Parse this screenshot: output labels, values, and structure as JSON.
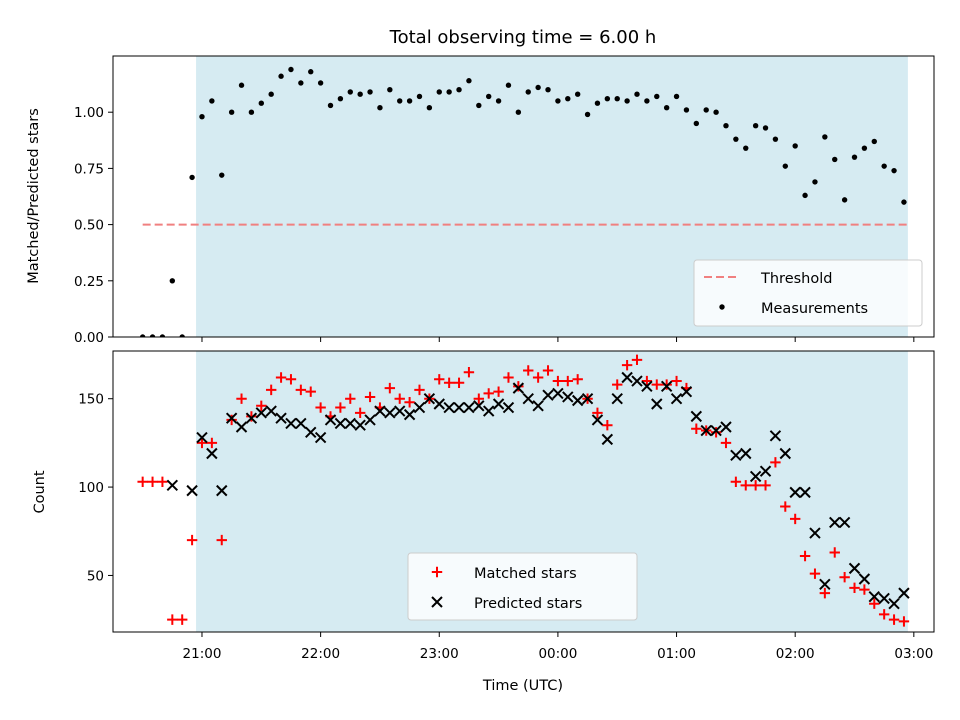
{
  "chart_data": [
    {
      "type": "scatter",
      "title": "Total observing time = 6.00 h",
      "ylabel": "Matched/Predicted stars",
      "xlabel": "",
      "ylim": [
        0,
        1.25
      ],
      "xlim": [
        20.25,
        27.17
      ],
      "x_axis": "time",
      "yticks": [
        "0.00",
        "0.25",
        "0.50",
        "0.75",
        "1.00"
      ],
      "shaded_interval": {
        "start": "20:57",
        "end": "02:57",
        "color": "#add8e6"
      },
      "threshold": {
        "name": "Threshold",
        "value": 0.5,
        "start": "20:30",
        "end": "02:57",
        "color": "#f08080",
        "style": "dashed"
      },
      "legend": {
        "position": "lower right",
        "entries": [
          "Threshold",
          "Measurements"
        ]
      },
      "series": [
        {
          "name": "Measurements",
          "color": "#000000",
          "marker": "dot",
          "points": [
            [
              "20:30",
              0.0
            ],
            [
              "20:35",
              0.0
            ],
            [
              "20:40",
              0.0
            ],
            [
              "20:45",
              0.25
            ],
            [
              "20:50",
              0.0
            ],
            [
              "20:55",
              0.71
            ],
            [
              "21:00",
              0.98
            ],
            [
              "21:05",
              1.05
            ],
            [
              "21:10",
              0.72
            ],
            [
              "21:15",
              1.0
            ],
            [
              "21:20",
              1.12
            ],
            [
              "21:25",
              1.0
            ],
            [
              "21:30",
              1.04
            ],
            [
              "21:35",
              1.08
            ],
            [
              "21:40",
              1.16
            ],
            [
              "21:45",
              1.19
            ],
            [
              "21:50",
              1.13
            ],
            [
              "21:55",
              1.18
            ],
            [
              "22:00",
              1.13
            ],
            [
              "22:05",
              1.03
            ],
            [
              "22:10",
              1.06
            ],
            [
              "22:15",
              1.09
            ],
            [
              "22:20",
              1.08
            ],
            [
              "22:25",
              1.09
            ],
            [
              "22:30",
              1.02
            ],
            [
              "22:35",
              1.1
            ],
            [
              "22:40",
              1.05
            ],
            [
              "22:45",
              1.05
            ],
            [
              "22:50",
              1.07
            ],
            [
              "22:55",
              1.02
            ],
            [
              "23:00",
              1.09
            ],
            [
              "23:05",
              1.09
            ],
            [
              "23:10",
              1.1
            ],
            [
              "23:15",
              1.14
            ],
            [
              "23:20",
              1.03
            ],
            [
              "23:25",
              1.07
            ],
            [
              "23:30",
              1.05
            ],
            [
              "23:35",
              1.12
            ],
            [
              "23:40",
              1.0
            ],
            [
              "23:45",
              1.09
            ],
            [
              "23:50",
              1.11
            ],
            [
              "23:55",
              1.1
            ],
            [
              "00:00",
              1.05
            ],
            [
              "00:05",
              1.06
            ],
            [
              "00:10",
              1.08
            ],
            [
              "00:15",
              0.99
            ],
            [
              "00:20",
              1.04
            ],
            [
              "00:25",
              1.06
            ],
            [
              "00:30",
              1.06
            ],
            [
              "00:35",
              1.05
            ],
            [
              "00:40",
              1.08
            ],
            [
              "00:45",
              1.05
            ],
            [
              "00:50",
              1.07
            ],
            [
              "00:55",
              1.02
            ],
            [
              "01:00",
              1.07
            ],
            [
              "01:05",
              1.01
            ],
            [
              "01:10",
              0.95
            ],
            [
              "01:15",
              1.01
            ],
            [
              "01:20",
              1.0
            ],
            [
              "01:25",
              0.94
            ],
            [
              "01:30",
              0.88
            ],
            [
              "01:35",
              0.84
            ],
            [
              "01:40",
              0.94
            ],
            [
              "01:45",
              0.93
            ],
            [
              "01:50",
              0.88
            ],
            [
              "01:55",
              0.76
            ],
            [
              "02:00",
              0.85
            ],
            [
              "02:05",
              0.63
            ],
            [
              "02:10",
              0.69
            ],
            [
              "02:15",
              0.89
            ],
            [
              "02:20",
              0.79
            ],
            [
              "02:25",
              0.61
            ],
            [
              "02:30",
              0.8
            ],
            [
              "02:35",
              0.84
            ],
            [
              "02:40",
              0.87
            ],
            [
              "02:45",
              0.76
            ],
            [
              "02:50",
              0.74
            ],
            [
              "02:55",
              0.6
            ]
          ]
        }
      ]
    },
    {
      "type": "scatter",
      "title": "",
      "ylabel": "Count",
      "xlabel": "Time (UTC)",
      "ylim": [
        18,
        177
      ],
      "xlim": [
        20.25,
        27.17
      ],
      "x_axis": "time",
      "yticks": [
        "50",
        "100",
        "150"
      ],
      "xticks": [
        "21:00",
        "22:00",
        "23:00",
        "00:00",
        "01:00",
        "02:00",
        "03:00"
      ],
      "shaded_interval": {
        "start": "20:57",
        "end": "02:57",
        "color": "#add8e6"
      },
      "legend": {
        "position": "lower center",
        "entries": [
          "Matched stars",
          "Predicted stars"
        ]
      },
      "series": [
        {
          "name": "Matched stars",
          "color": "#ff0000",
          "marker": "plus",
          "points": [
            [
              "20:30",
              103
            ],
            [
              "20:35",
              103
            ],
            [
              "20:40",
              103
            ],
            [
              "20:45",
              25
            ],
            [
              "20:50",
              25
            ],
            [
              "20:55",
              70
            ],
            [
              "21:00",
              125
            ],
            [
              "21:05",
              125
            ],
            [
              "21:10",
              70
            ],
            [
              "21:15",
              138
            ],
            [
              "21:20",
              150
            ],
            [
              "21:25",
              140
            ],
            [
              "21:30",
              146
            ],
            [
              "21:35",
              155
            ],
            [
              "21:40",
              162
            ],
            [
              "21:45",
              161
            ],
            [
              "21:50",
              155
            ],
            [
              "21:55",
              154
            ],
            [
              "22:00",
              145
            ],
            [
              "22:05",
              140
            ],
            [
              "22:10",
              145
            ],
            [
              "22:15",
              150
            ],
            [
              "22:20",
              142
            ],
            [
              "22:25",
              151
            ],
            [
              "22:30",
              145
            ],
            [
              "22:35",
              156
            ],
            [
              "22:40",
              150
            ],
            [
              "22:45",
              148
            ],
            [
              "22:50",
              155
            ],
            [
              "22:55",
              150
            ],
            [
              "23:00",
              161
            ],
            [
              "23:05",
              159
            ],
            [
              "23:10",
              159
            ],
            [
              "23:15",
              165
            ],
            [
              "23:20",
              150
            ],
            [
              "23:25",
              153
            ],
            [
              "23:30",
              154
            ],
            [
              "23:35",
              162
            ],
            [
              "23:40",
              157
            ],
            [
              "23:45",
              166
            ],
            [
              "23:50",
              162
            ],
            [
              "23:55",
              166
            ],
            [
              "00:00",
              160
            ],
            [
              "00:05",
              160
            ],
            [
              "00:10",
              161
            ],
            [
              "00:15",
              150
            ],
            [
              "00:20",
              142
            ],
            [
              "00:25",
              135
            ],
            [
              "00:30",
              158
            ],
            [
              "00:35",
              169
            ],
            [
              "00:40",
              172
            ],
            [
              "00:45",
              160
            ],
            [
              "00:50",
              158
            ],
            [
              "00:55",
              158
            ],
            [
              "01:00",
              160
            ],
            [
              "01:05",
              156
            ],
            [
              "01:10",
              133
            ],
            [
              "01:15",
              132
            ],
            [
              "01:20",
              131
            ],
            [
              "01:25",
              125
            ],
            [
              "01:30",
              103
            ],
            [
              "01:35",
              101
            ],
            [
              "01:40",
              101
            ],
            [
              "01:45",
              101
            ],
            [
              "01:50",
              114
            ],
            [
              "01:55",
              89
            ],
            [
              "02:00",
              82
            ],
            [
              "02:05",
              61
            ],
            [
              "02:10",
              51
            ],
            [
              "02:15",
              40
            ],
            [
              "02:20",
              63
            ],
            [
              "02:25",
              49
            ],
            [
              "02:30",
              43
            ],
            [
              "02:35",
              42
            ],
            [
              "02:40",
              34
            ],
            [
              "02:45",
              28
            ],
            [
              "02:50",
              25
            ],
            [
              "02:55",
              24
            ]
          ]
        },
        {
          "name": "Predicted stars",
          "color": "#000000",
          "marker": "x",
          "points": [
            [
              "20:45",
              101
            ],
            [
              "20:55",
              98
            ],
            [
              "21:00",
              128
            ],
            [
              "21:05",
              119
            ],
            [
              "21:10",
              98
            ],
            [
              "21:15",
              139
            ],
            [
              "21:20",
              134
            ],
            [
              "21:25",
              139
            ],
            [
              "21:30",
              142
            ],
            [
              "21:35",
              143
            ],
            [
              "21:40",
              139
            ],
            [
              "21:45",
              136
            ],
            [
              "21:50",
              136
            ],
            [
              "21:55",
              131
            ],
            [
              "22:00",
              128
            ],
            [
              "22:05",
              138
            ],
            [
              "22:10",
              136
            ],
            [
              "22:15",
              136
            ],
            [
              "22:20",
              135
            ],
            [
              "22:25",
              138
            ],
            [
              "22:30",
              143
            ],
            [
              "22:35",
              142
            ],
            [
              "22:40",
              143
            ],
            [
              "22:45",
              141
            ],
            [
              "22:50",
              145
            ],
            [
              "22:55",
              150
            ],
            [
              "23:00",
              147
            ],
            [
              "23:05",
              145
            ],
            [
              "23:10",
              145
            ],
            [
              "23:15",
              145
            ],
            [
              "23:20",
              146
            ],
            [
              "23:25",
              143
            ],
            [
              "23:30",
              147
            ],
            [
              "23:35",
              145
            ],
            [
              "23:40",
              156
            ],
            [
              "23:45",
              150
            ],
            [
              "23:50",
              146
            ],
            [
              "23:55",
              152
            ],
            [
              "00:00",
              153
            ],
            [
              "00:05",
              151
            ],
            [
              "00:10",
              149
            ],
            [
              "00:15",
              150
            ],
            [
              "00:20",
              138
            ],
            [
              "00:25",
              127
            ],
            [
              "00:30",
              150
            ],
            [
              "00:35",
              162
            ],
            [
              "00:40",
              160
            ],
            [
              "00:45",
              157
            ],
            [
              "00:50",
              147
            ],
            [
              "00:55",
              157
            ],
            [
              "01:00",
              150
            ],
            [
              "01:05",
              154
            ],
            [
              "01:10",
              140
            ],
            [
              "01:15",
              132
            ],
            [
              "01:20",
              132
            ],
            [
              "01:25",
              134
            ],
            [
              "01:30",
              118
            ],
            [
              "01:35",
              119
            ],
            [
              "01:40",
              106
            ],
            [
              "01:45",
              109
            ],
            [
              "01:50",
              129
            ],
            [
              "01:55",
              119
            ],
            [
              "02:00",
              97
            ],
            [
              "02:05",
              97
            ],
            [
              "02:10",
              74
            ],
            [
              "02:15",
              45
            ],
            [
              "02:20",
              80
            ],
            [
              "02:25",
              80
            ],
            [
              "02:30",
              54
            ],
            [
              "02:35",
              48
            ],
            [
              "02:40",
              38
            ],
            [
              "02:45",
              37
            ],
            [
              "02:50",
              34
            ],
            [
              "02:55",
              40
            ]
          ]
        }
      ]
    }
  ]
}
